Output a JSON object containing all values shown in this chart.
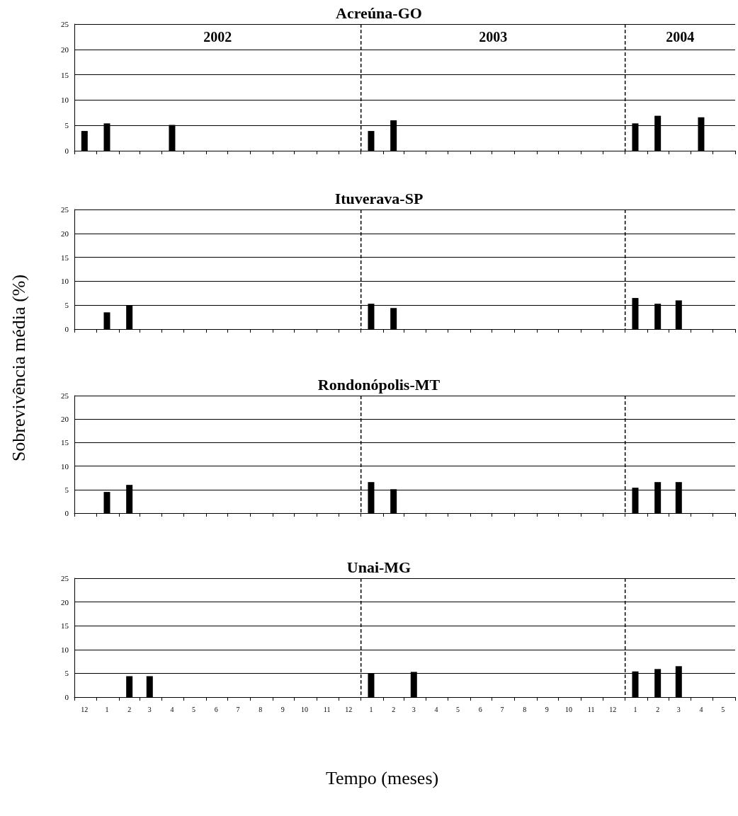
{
  "chart_data": [
    {
      "type": "bar",
      "title": "Acreúna-GO",
      "x": [
        "2001-12-15",
        "2002-01-15",
        "2002-04-15",
        "2003-01-15",
        "2003-02-15",
        "2004-01-15",
        "2004-02-15",
        "2004-04-15"
      ],
      "values": [
        3.9,
        5.4,
        5.1,
        3.9,
        6.0,
        5.4,
        6.9,
        6.6
      ],
      "color": "#000000",
      "xlim": [
        "2001-12-01",
        "2004-06-01"
      ],
      "xticks": [
        {
          "value": "2001-12-01",
          "label": null
        },
        {
          "value": "2002-01-01",
          "label": null
        },
        {
          "value": "2002-02-01",
          "label": null
        },
        {
          "value": "2002-03-01",
          "label": null
        },
        {
          "value": "2002-04-01",
          "label": null
        },
        {
          "value": "2002-05-01",
          "label": null
        },
        {
          "value": "2002-06-01",
          "label": null
        },
        {
          "value": "2002-07-01",
          "label": null
        },
        {
          "value": "2002-08-01",
          "label": null
        },
        {
          "value": "2002-09-01",
          "label": null
        },
        {
          "value": "2002-10-01",
          "label": null
        },
        {
          "value": "2002-11-01",
          "label": null
        },
        {
          "value": "2002-12-01",
          "label": null
        },
        {
          "value": "2003-01-01",
          "label": null
        },
        {
          "value": "2003-02-01",
          "label": null
        },
        {
          "value": "2003-03-01",
          "label": null
        },
        {
          "value": "2003-04-01",
          "label": null
        },
        {
          "value": "2003-05-01",
          "label": null
        },
        {
          "value": "2003-06-01",
          "label": null
        },
        {
          "value": "2003-07-01",
          "label": null
        },
        {
          "value": "2003-08-01",
          "label": null
        },
        {
          "value": "2003-09-01",
          "label": null
        },
        {
          "value": "2003-10-01",
          "label": null
        },
        {
          "value": "2003-11-01",
          "label": null
        },
        {
          "value": "2003-12-01",
          "label": null
        },
        {
          "value": "2004-01-01",
          "label": null
        },
        {
          "value": "2004-02-01",
          "label": null
        },
        {
          "value": "2004-03-01",
          "label": null
        },
        {
          "value": "2004-04-01",
          "label": null
        },
        {
          "value": "2004-05-01",
          "label": null
        },
        {
          "value": "2004-06-01",
          "label": null
        }
      ],
      "ylim": [
        0,
        25
      ],
      "yticks": [
        0,
        5,
        10,
        15,
        20,
        25
      ],
      "grid": "y",
      "tick_labels": "y",
      "ref_lines": [
        {
          "axis": "x",
          "value": "2003-01-01",
          "line_style": "dashed"
        },
        {
          "axis": "x",
          "value": "2004-01-01",
          "line_style": "dashed"
        }
      ],
      "annotations": [
        "2002",
        "2003",
        "2004"
      ]
    },
    {
      "type": "bar",
      "title": "Ituverava-SP",
      "ylabel": "Sobrevivência média (%)",
      "x": [
        "2002-01-15",
        "2002-02-15",
        "2003-01-15",
        "2003-02-15",
        "2004-01-15",
        "2004-02-15",
        "2004-03-15"
      ],
      "values": [
        3.5,
        5.0,
        5.3,
        4.4,
        6.5,
        5.3,
        6.0
      ],
      "color": "#000000",
      "xlim": [
        "2001-12-01",
        "2004-06-01"
      ],
      "xticks": [
        {
          "value": "2001-12-01",
          "label": null
        },
        {
          "value": "2002-01-01",
          "label": null
        },
        {
          "value": "2002-02-01",
          "label": null
        },
        {
          "value": "2002-03-01",
          "label": null
        },
        {
          "value": "2002-04-01",
          "label": null
        },
        {
          "value": "2002-05-01",
          "label": null
        },
        {
          "value": "2002-06-01",
          "label": null
        },
        {
          "value": "2002-07-01",
          "label": null
        },
        {
          "value": "2002-08-01",
          "label": null
        },
        {
          "value": "2002-09-01",
          "label": null
        },
        {
          "value": "2002-10-01",
          "label": null
        },
        {
          "value": "2002-11-01",
          "label": null
        },
        {
          "value": "2002-12-01",
          "label": null
        },
        {
          "value": "2003-01-01",
          "label": null
        },
        {
          "value": "2003-02-01",
          "label": null
        },
        {
          "value": "2003-03-01",
          "label": null
        },
        {
          "value": "2003-04-01",
          "label": null
        },
        {
          "value": "2003-05-01",
          "label": null
        },
        {
          "value": "2003-06-01",
          "label": null
        },
        {
          "value": "2003-07-01",
          "label": null
        },
        {
          "value": "2003-08-01",
          "label": null
        },
        {
          "value": "2003-09-01",
          "label": null
        },
        {
          "value": "2003-10-01",
          "label": null
        },
        {
          "value": "2003-11-01",
          "label": null
        },
        {
          "value": "2003-12-01",
          "label": null
        },
        {
          "value": "2004-01-01",
          "label": null
        },
        {
          "value": "2004-02-01",
          "label": null
        },
        {
          "value": "2004-03-01",
          "label": null
        },
        {
          "value": "2004-04-01",
          "label": null
        },
        {
          "value": "2004-05-01",
          "label": null
        },
        {
          "value": "2004-06-01",
          "label": null
        }
      ],
      "ylim": [
        0,
        25
      ],
      "yticks": [
        0,
        5,
        10,
        15,
        20,
        25
      ],
      "grid": "y",
      "tick_labels": "y",
      "ref_lines": [
        {
          "axis": "x",
          "value": "2003-01-01",
          "line_style": "dashed"
        },
        {
          "axis": "x",
          "value": "2004-01-01",
          "line_style": "dashed"
        }
      ]
    },
    {
      "type": "bar",
      "title": "Rondonópolis-MT",
      "x": [
        "2002-01-15",
        "2002-02-15",
        "2003-01-15",
        "2003-02-15",
        "2004-01-15",
        "2004-02-15",
        "2004-03-15"
      ],
      "values": [
        4.5,
        6.0,
        6.6,
        5.1,
        5.4,
        6.6,
        6.6
      ],
      "color": "#000000",
      "xlim": [
        "2001-12-01",
        "2004-06-01"
      ],
      "xticks": [
        {
          "value": "2001-12-01",
          "label": null
        },
        {
          "value": "2002-01-01",
          "label": null
        },
        {
          "value": "2002-02-01",
          "label": null
        },
        {
          "value": "2002-03-01",
          "label": null
        },
        {
          "value": "2002-04-01",
          "label": null
        },
        {
          "value": "2002-05-01",
          "label": null
        },
        {
          "value": "2002-06-01",
          "label": null
        },
        {
          "value": "2002-07-01",
          "label": null
        },
        {
          "value": "2002-08-01",
          "label": null
        },
        {
          "value": "2002-09-01",
          "label": null
        },
        {
          "value": "2002-10-01",
          "label": null
        },
        {
          "value": "2002-11-01",
          "label": null
        },
        {
          "value": "2002-12-01",
          "label": null
        },
        {
          "value": "2003-01-01",
          "label": null
        },
        {
          "value": "2003-02-01",
          "label": null
        },
        {
          "value": "2003-03-01",
          "label": null
        },
        {
          "value": "2003-04-01",
          "label": null
        },
        {
          "value": "2003-05-01",
          "label": null
        },
        {
          "value": "2003-06-01",
          "label": null
        },
        {
          "value": "2003-07-01",
          "label": null
        },
        {
          "value": "2003-08-01",
          "label": null
        },
        {
          "value": "2003-09-01",
          "label": null
        },
        {
          "value": "2003-10-01",
          "label": null
        },
        {
          "value": "2003-11-01",
          "label": null
        },
        {
          "value": "2003-12-01",
          "label": null
        },
        {
          "value": "2004-01-01",
          "label": null
        },
        {
          "value": "2004-02-01",
          "label": null
        },
        {
          "value": "2004-03-01",
          "label": null
        },
        {
          "value": "2004-04-01",
          "label": null
        },
        {
          "value": "2004-05-01",
          "label": null
        },
        {
          "value": "2004-06-01",
          "label": null
        }
      ],
      "ylim": [
        0,
        25
      ],
      "yticks": [
        0,
        5,
        10,
        15,
        20,
        25
      ],
      "grid": "y",
      "tick_labels": "y",
      "ref_lines": [
        {
          "axis": "x",
          "value": "2003-01-01",
          "line_style": "dashed"
        },
        {
          "axis": "x",
          "value": "2004-01-01",
          "line_style": "dashed"
        }
      ]
    },
    {
      "type": "bar",
      "title": "Unai-MG",
      "xlabel": "Tempo (meses)",
      "x": [
        "2002-02-15",
        "2002-03-15",
        "2003-01-15",
        "2003-03-15",
        "2004-01-15",
        "2004-02-15",
        "2004-03-15"
      ],
      "values": [
        4.4,
        4.4,
        5.0,
        5.3,
        5.4,
        5.9,
        6.5
      ],
      "color": "#000000",
      "xlim": [
        "2001-12-01",
        "2004-06-01"
      ],
      "xticks": [
        {
          "value": "2001-12-15",
          "label": "12"
        },
        {
          "value": "2002-01-15",
          "label": "1"
        },
        {
          "value": "2002-02-15",
          "label": "2"
        },
        {
          "value": "2002-03-15",
          "label": "3"
        },
        {
          "value": "2002-04-15",
          "label": "4"
        },
        {
          "value": "2002-05-15",
          "label": "5"
        },
        {
          "value": "2002-06-15",
          "label": "6"
        },
        {
          "value": "2002-07-15",
          "label": "7"
        },
        {
          "value": "2002-08-15",
          "label": "8"
        },
        {
          "value": "2002-09-15",
          "label": "9"
        },
        {
          "value": "2002-10-15",
          "label": "10"
        },
        {
          "value": "2002-11-15",
          "label": "11"
        },
        {
          "value": "2002-12-15",
          "label": "12"
        },
        {
          "value": "2003-01-15",
          "label": "1"
        },
        {
          "value": "2003-02-15",
          "label": "2"
        },
        {
          "value": "2003-03-15",
          "label": "3"
        },
        {
          "value": "2003-04-15",
          "label": "4"
        },
        {
          "value": "2003-05-15",
          "label": "5"
        },
        {
          "value": "2003-06-15",
          "label": "6"
        },
        {
          "value": "2003-07-15",
          "label": "7"
        },
        {
          "value": "2003-08-15",
          "label": "8"
        },
        {
          "value": "2003-09-15",
          "label": "9"
        },
        {
          "value": "2003-10-15",
          "label": "10"
        },
        {
          "value": "2003-11-15",
          "label": "11"
        },
        {
          "value": "2003-12-15",
          "label": "12"
        },
        {
          "value": "2004-01-15",
          "label": "1"
        },
        {
          "value": "2004-02-15",
          "label": "2"
        },
        {
          "value": "2004-03-15",
          "label": "3"
        },
        {
          "value": "2004-04-15",
          "label": "4"
        },
        {
          "value": "2004-05-15",
          "label": "5"
        },
        {
          "value": "2001-12-01",
          "label": null
        },
        {
          "value": "2002-01-01",
          "label": null
        },
        {
          "value": "2002-02-01",
          "label": null
        },
        {
          "value": "2002-03-01",
          "label": null
        },
        {
          "value": "2002-04-01",
          "label": null
        },
        {
          "value": "2002-05-01",
          "label": null
        },
        {
          "value": "2002-06-01",
          "label": null
        },
        {
          "value": "2002-07-01",
          "label": null
        },
        {
          "value": "2002-08-01",
          "label": null
        },
        {
          "value": "2002-09-01",
          "label": null
        },
        {
          "value": "2002-10-01",
          "label": null
        },
        {
          "value": "2002-11-01",
          "label": null
        },
        {
          "value": "2002-12-01",
          "label": null
        },
        {
          "value": "2003-01-01",
          "label": null
        },
        {
          "value": "2003-02-01",
          "label": null
        },
        {
          "value": "2003-03-01",
          "label": null
        },
        {
          "value": "2003-04-01",
          "label": null
        },
        {
          "value": "2003-05-01",
          "label": null
        },
        {
          "value": "2003-06-01",
          "label": null
        },
        {
          "value": "2003-07-01",
          "label": null
        },
        {
          "value": "2003-08-01",
          "label": null
        },
        {
          "value": "2003-09-01",
          "label": null
        },
        {
          "value": "2003-10-01",
          "label": null
        },
        {
          "value": "2003-11-01",
          "label": null
        },
        {
          "value": "2003-12-01",
          "label": null
        },
        {
          "value": "2004-01-01",
          "label": null
        },
        {
          "value": "2004-02-01",
          "label": null
        },
        {
          "value": "2004-03-01",
          "label": null
        },
        {
          "value": "2004-04-01",
          "label": null
        },
        {
          "value": "2004-05-01",
          "label": null
        },
        {
          "value": "2004-06-01",
          "label": null
        }
      ],
      "ylim": [
        0,
        25
      ],
      "yticks": [
        0,
        5,
        10,
        15,
        20,
        25
      ],
      "grid": "y",
      "ref_lines": [
        {
          "axis": "x",
          "value": "2003-01-01",
          "line_style": "dashed"
        },
        {
          "axis": "x",
          "value": "2004-01-01",
          "line_style": "dashed"
        }
      ]
    }
  ]
}
